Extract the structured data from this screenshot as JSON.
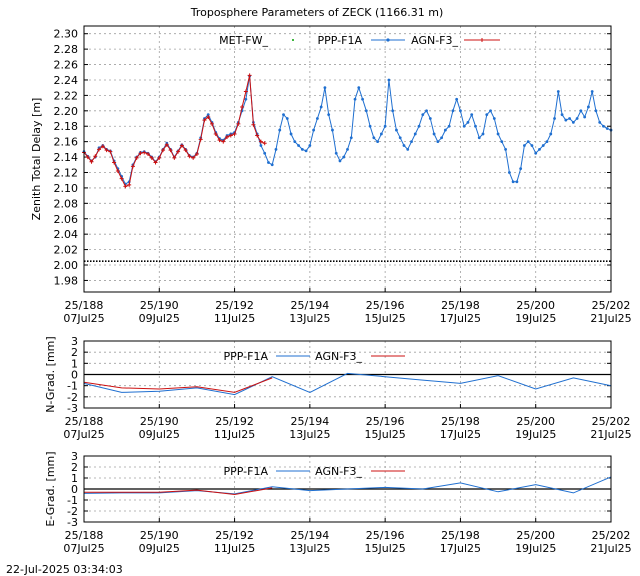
{
  "footer": {
    "timestamp": "22-Jul-2025 03:34:03"
  },
  "colors": {
    "ppp": "#1f6fd0",
    "agn": "#cc1010",
    "met": "#00a000",
    "zero": "#000000"
  },
  "x_ticks": [
    {
      "x": 188,
      "l1": "25/188",
      "l2": "07Jul25"
    },
    {
      "x": 190,
      "l1": "25/190",
      "l2": "09Jul25"
    },
    {
      "x": 192,
      "l1": "25/192",
      "l2": "11Jul25"
    },
    {
      "x": 194,
      "l1": "25/194",
      "l2": "13Jul25"
    },
    {
      "x": 196,
      "l1": "25/196",
      "l2": "15Jul25"
    },
    {
      "x": 198,
      "l1": "25/198",
      "l2": "17Jul25"
    },
    {
      "x": 200,
      "l1": "25/200",
      "l2": "19Jul25"
    },
    {
      "x": 202,
      "l1": "25/202",
      "l2": "21Jul25"
    }
  ],
  "chart_data": [
    {
      "type": "line",
      "title": "Troposphere Parameters of ZECK (1166.31 m)",
      "ylabel": "Zenith Total Delay [m]",
      "xlim": [
        188,
        202
      ],
      "ylim": [
        1.965,
        2.31
      ],
      "yticks": [
        1.98,
        2.0,
        2.02,
        2.04,
        2.06,
        2.08,
        2.1,
        2.12,
        2.14,
        2.16,
        2.18,
        2.2,
        2.22,
        2.24,
        2.26,
        2.28,
        2.3
      ],
      "series": [
        {
          "name": "MET-FW_",
          "color": "#00a000",
          "style": "dots",
          "x": [
            188,
            202
          ],
          "y": [
            2.005,
            2.005
          ]
        },
        {
          "name": "PPP-F1A",
          "color": "#1f6fd0",
          "style": "line",
          "x": [
            188.0,
            188.1,
            188.2,
            188.3,
            188.4,
            188.5,
            188.6,
            188.7,
            188.8,
            188.9,
            189.0,
            189.1,
            189.2,
            189.3,
            189.4,
            189.5,
            189.6,
            189.7,
            189.8,
            189.9,
            190.0,
            190.1,
            190.2,
            190.3,
            190.4,
            190.5,
            190.6,
            190.7,
            190.8,
            190.9,
            191.0,
            191.1,
            191.2,
            191.3,
            191.4,
            191.5,
            191.6,
            191.7,
            191.8,
            191.9,
            192.0,
            192.1,
            192.2,
            192.3,
            192.4,
            192.5,
            192.6,
            192.7,
            192.8,
            192.9,
            193.0,
            193.1,
            193.2,
            193.3,
            193.4,
            193.5,
            193.6,
            193.7,
            193.8,
            193.9,
            194.0,
            194.1,
            194.2,
            194.3,
            194.4,
            194.5,
            194.6,
            194.7,
            194.8,
            194.9,
            195.0,
            195.1,
            195.2,
            195.3,
            195.4,
            195.5,
            195.6,
            195.7,
            195.8,
            195.9,
            196.0,
            196.1,
            196.2,
            196.3,
            196.4,
            196.5,
            196.6,
            196.7,
            196.8,
            196.9,
            197.0,
            197.1,
            197.2,
            197.3,
            197.4,
            197.5,
            197.6,
            197.7,
            197.8,
            197.9,
            198.0,
            198.1,
            198.2,
            198.3,
            198.4,
            198.5,
            198.6,
            198.7,
            198.8,
            198.9,
            199.0,
            199.1,
            199.2,
            199.3,
            199.4,
            199.5,
            199.6,
            199.7,
            199.8,
            199.9,
            200.0,
            200.1,
            200.2,
            200.3,
            200.4,
            200.5,
            200.6,
            200.7,
            200.8,
            200.9,
            201.0,
            201.1,
            201.2,
            201.3,
            201.4,
            201.5,
            201.6,
            201.7,
            201.8,
            201.9,
            202.0
          ],
          "y": [
            2.147,
            2.141,
            2.135,
            2.14,
            2.152,
            2.155,
            2.15,
            2.148,
            2.135,
            2.125,
            2.115,
            2.105,
            2.108,
            2.13,
            2.14,
            2.146,
            2.147,
            2.145,
            2.14,
            2.134,
            2.14,
            2.15,
            2.158,
            2.15,
            2.14,
            2.148,
            2.156,
            2.15,
            2.142,
            2.14,
            2.145,
            2.165,
            2.19,
            2.195,
            2.185,
            2.172,
            2.164,
            2.162,
            2.168,
            2.17,
            2.172,
            2.185,
            2.2,
            2.215,
            2.245,
            2.185,
            2.17,
            2.155,
            2.145,
            2.133,
            2.13,
            2.15,
            2.175,
            2.195,
            2.19,
            2.17,
            2.16,
            2.155,
            2.15,
            2.148,
            2.155,
            2.175,
            2.19,
            2.205,
            2.23,
            2.195,
            2.175,
            2.145,
            2.135,
            2.14,
            2.15,
            2.165,
            2.215,
            2.23,
            2.215,
            2.2,
            2.18,
            2.165,
            2.16,
            2.17,
            2.18,
            2.24,
            2.2,
            2.175,
            2.165,
            2.155,
            2.15,
            2.16,
            2.17,
            2.18,
            2.195,
            2.2,
            2.19,
            2.17,
            2.16,
            2.165,
            2.175,
            2.18,
            2.2,
            2.215,
            2.2,
            2.18,
            2.185,
            2.195,
            2.18,
            2.165,
            2.17,
            2.195,
            2.2,
            2.19,
            2.17,
            2.16,
            2.15,
            2.12,
            2.108,
            2.108,
            2.125,
            2.155,
            2.16,
            2.155,
            2.145,
            2.15,
            2.155,
            2.16,
            2.17,
            2.19,
            2.225,
            2.195,
            2.188,
            2.19,
            2.185,
            2.19,
            2.2,
            2.192,
            2.205,
            2.225,
            2.2,
            2.185,
            2.18,
            2.177,
            2.175
          ]
        },
        {
          "name": "AGN-F3_",
          "color": "#cc1010",
          "style": "line",
          "x": [
            188.0,
            188.1,
            188.2,
            188.3,
            188.4,
            188.5,
            188.6,
            188.7,
            188.8,
            188.9,
            189.0,
            189.1,
            189.2,
            189.3,
            189.4,
            189.5,
            189.6,
            189.7,
            189.8,
            189.9,
            190.0,
            190.1,
            190.2,
            190.3,
            190.4,
            190.5,
            190.6,
            190.7,
            190.8,
            190.9,
            191.0,
            191.1,
            191.2,
            191.3,
            191.4,
            191.5,
            191.6,
            191.7,
            191.8,
            191.9,
            192.0,
            192.1,
            192.2,
            192.3,
            192.4,
            192.5,
            192.6,
            192.7,
            192.8
          ],
          "y": [
            2.146,
            2.14,
            2.134,
            2.141,
            2.15,
            2.154,
            2.149,
            2.147,
            2.133,
            2.122,
            2.112,
            2.102,
            2.104,
            2.128,
            2.139,
            2.145,
            2.146,
            2.144,
            2.139,
            2.133,
            2.139,
            2.149,
            2.156,
            2.149,
            2.139,
            2.147,
            2.155,
            2.149,
            2.141,
            2.139,
            2.144,
            2.163,
            2.188,
            2.192,
            2.183,
            2.17,
            2.162,
            2.16,
            2.166,
            2.168,
            2.17,
            2.183,
            2.205,
            2.225,
            2.246,
            2.182,
            2.168,
            2.16,
            2.158
          ]
        }
      ]
    },
    {
      "type": "line",
      "ylabel": "N-Grad. [mm]",
      "xlim": [
        188,
        202
      ],
      "ylim": [
        -3,
        3
      ],
      "yticks": [
        -3,
        -2,
        -1,
        0,
        1,
        2,
        3
      ],
      "series": [
        {
          "name": "PPP-F1A",
          "color": "#1f6fd0",
          "x": [
            188,
            189,
            190,
            191,
            192,
            193,
            194,
            195,
            196,
            197,
            198,
            199,
            200,
            201,
            202
          ],
          "y": [
            -0.8,
            -1.6,
            -1.5,
            -1.2,
            -1.8,
            -0.2,
            -1.6,
            0.1,
            -0.2,
            -0.5,
            -0.8,
            -0.1,
            -1.3,
            -0.3,
            -1.0
          ]
        },
        {
          "name": "AGN-F3_",
          "color": "#cc1010",
          "x": [
            188,
            189,
            190,
            191,
            192,
            193
          ],
          "y": [
            -0.7,
            -1.2,
            -1.3,
            -1.1,
            -1.6,
            -0.3
          ]
        }
      ]
    },
    {
      "type": "line",
      "ylabel": "E-Grad. [mm]",
      "xlim": [
        188,
        202
      ],
      "ylim": [
        -3,
        3
      ],
      "yticks": [
        -3,
        -2,
        -1,
        0,
        1,
        2,
        3
      ],
      "series": [
        {
          "name": "PPP-F1A",
          "color": "#1f6fd0",
          "x": [
            188,
            189,
            190,
            191,
            192,
            193,
            194,
            195,
            196,
            197,
            198,
            199,
            200,
            201,
            202
          ],
          "y": [
            -0.4,
            -0.35,
            -0.35,
            -0.15,
            -0.45,
            0.2,
            -0.15,
            0.0,
            0.15,
            0.0,
            0.55,
            -0.25,
            0.4,
            -0.35,
            1.1
          ]
        },
        {
          "name": "AGN-F3_",
          "color": "#cc1010",
          "x": [
            188,
            189,
            190,
            191,
            192,
            193
          ],
          "y": [
            -0.3,
            -0.3,
            -0.3,
            -0.1,
            -0.5,
            0.1
          ]
        }
      ]
    }
  ]
}
